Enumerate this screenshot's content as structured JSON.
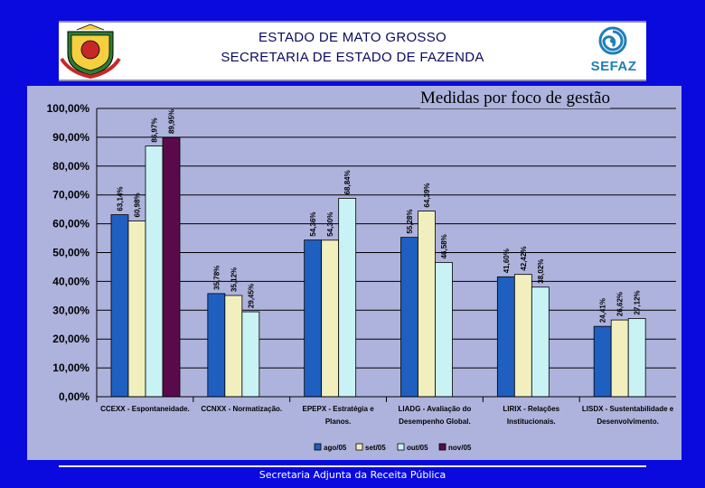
{
  "header": {
    "line1": "ESTADO DE MATO GROSSO",
    "line2": "SECRETARIA DE ESTADO DE FAZENDA",
    "logo_text": "SEFAZ"
  },
  "footer": {
    "text": "Secretaria Adjunta da Receita Pública"
  },
  "colors": {
    "page_bg": "#0a0adf",
    "panel_bg": "#aeb3dd",
    "series": [
      "#1f5fc0",
      "#f2efbe",
      "#c9f2f5",
      "#5a0a4a"
    ]
  },
  "chart_data": {
    "type": "bar",
    "title": "Medidas por foco de gestão",
    "categories": [
      [
        "CCEXX - Espontaneidade.",
        ""
      ],
      [
        "CCNXX - Normatização.",
        ""
      ],
      [
        "EPEPX - Estratégia e",
        "Planos."
      ],
      [
        "LIADG - Avaliação do",
        "Desempenho Global."
      ],
      [
        "LIRIX - Relações",
        "Institucionais."
      ],
      [
        "LISDX - Sustentabilidade e",
        "Desenvolvimento."
      ]
    ],
    "series": [
      {
        "name": "ago/05",
        "values": [
          63.14,
          35.78,
          54.36,
          55.28,
          41.6,
          24.41
        ],
        "labels": [
          "63,14%",
          "35,78%",
          "54,36%",
          "55,28%",
          "41,60%",
          "24,41%"
        ]
      },
      {
        "name": "set/05",
        "values": [
          60.98,
          35.12,
          54.3,
          64.39,
          42.42,
          26.62
        ],
        "labels": [
          "60,98%",
          "35,12%",
          "54,30%",
          "64,39%",
          "42,42%",
          "26,62%"
        ]
      },
      {
        "name": "out/05",
        "values": [
          86.97,
          29.45,
          68.84,
          46.58,
          38.02,
          27.12
        ],
        "labels": [
          "86,97%",
          "29,45%",
          "68,84%",
          "46,58%",
          "38,02%",
          "27,12%"
        ]
      },
      {
        "name": "nov/05",
        "values": [
          89.95,
          null,
          null,
          null,
          null,
          null
        ],
        "labels": [
          "89,95%",
          "",
          "",
          "",
          "",
          ""
        ]
      }
    ],
    "y_ticks": [
      "0,00%",
      "10,00%",
      "20,00%",
      "30,00%",
      "40,00%",
      "50,00%",
      "60,00%",
      "70,00%",
      "80,00%",
      "90,00%",
      "100,00%"
    ],
    "ylim": [
      0,
      100
    ],
    "grid": true,
    "legend_position": "bottom"
  }
}
